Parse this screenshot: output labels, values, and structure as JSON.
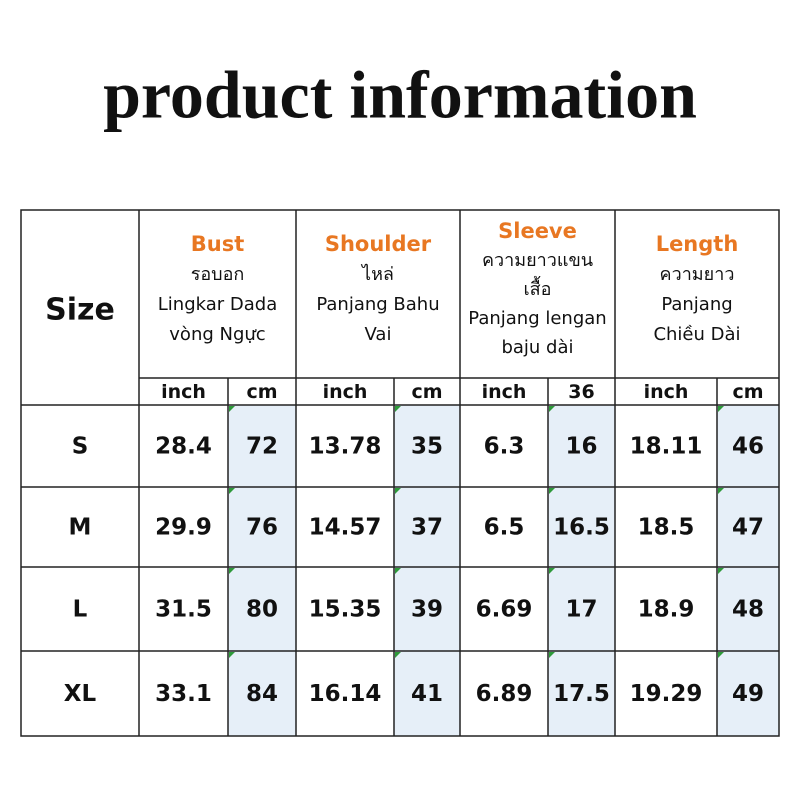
{
  "title": "product information",
  "table": {
    "corner": "Size",
    "groups": [
      {
        "name": "Bust",
        "lines": [
          "รอบอก",
          "Lingkar Dada",
          "vòng Ngực"
        ],
        "units": [
          "inch",
          "cm"
        ]
      },
      {
        "name": "Shoulder",
        "lines": [
          "ไหล่",
          "Panjang Bahu",
          "Vai"
        ],
        "units": [
          "inch",
          "cm"
        ]
      },
      {
        "name": "Sleeve",
        "lines": [
          "ความยาวแขน",
          "เสื้อ",
          "Panjang lengan",
          "baju dài"
        ],
        "units": [
          "inch",
          "36"
        ]
      },
      {
        "name": "Length",
        "lines": [
          "ความยาว",
          "Panjang",
          "Chiều Dài"
        ],
        "units": [
          "inch",
          "cm"
        ]
      }
    ],
    "rows": [
      [
        "S",
        "28.4",
        "72",
        "13.78",
        "35",
        "6.3",
        "16",
        "18.11",
        "46"
      ],
      [
        "M",
        "29.9",
        "76",
        "14.57",
        "37",
        "6.5",
        "16.5",
        "18.5",
        "47"
      ],
      [
        "L",
        "31.5",
        "80",
        "15.35",
        "39",
        "6.69",
        "17",
        "18.9",
        "48"
      ],
      [
        "XL",
        "33.1",
        "84",
        "16.14",
        "41",
        "6.89",
        "17.5",
        "19.29",
        "49"
      ]
    ]
  }
}
